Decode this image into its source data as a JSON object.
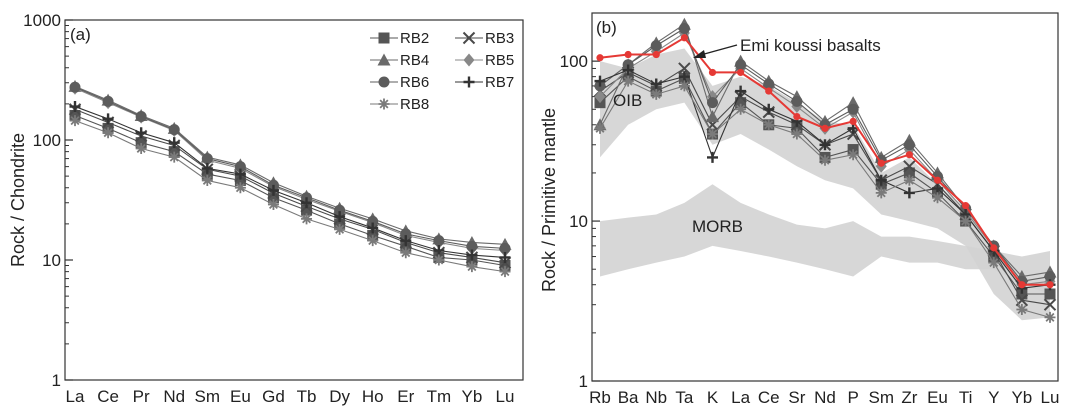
{
  "chart_data": [
    {
      "type": "line",
      "panel_label": "(a)",
      "ylabel": "Rock / Chondrite",
      "yscale": "log",
      "ylim": [
        1,
        1000
      ],
      "yticks": [
        "1",
        "10",
        "100",
        "1000"
      ],
      "categories": [
        "La",
        "Ce",
        "Pr",
        "Nd",
        "Sm",
        "Eu",
        "Gd",
        "Tb",
        "Dy",
        "Ho",
        "Er",
        "Tm",
        "Yb",
        "Lu"
      ],
      "legend_position": "top-right",
      "series": [
        {
          "name": "RB2",
          "marker": "square",
          "values": [
            160,
            125,
            95,
            80,
            52,
            46,
            33,
            26,
            20,
            16,
            13,
            10.5,
            10,
            9
          ]
        },
        {
          "name": "RB3",
          "marker": "x",
          "values": [
            180,
            140,
            108,
            90,
            57,
            50,
            36,
            28,
            22,
            18,
            14,
            11.5,
            10.5,
            9.5
          ]
        },
        {
          "name": "RB4",
          "marker": "triangle",
          "values": [
            280,
            215,
            160,
            125,
            72,
            62,
            44,
            34,
            27,
            22,
            17.5,
            15,
            14,
            13.5
          ]
        },
        {
          "name": "RB5",
          "marker": "diamond",
          "values": [
            270,
            205,
            155,
            120,
            68,
            58,
            41,
            32,
            25.5,
            20.5,
            16,
            14,
            12.5,
            12
          ]
        },
        {
          "name": "RB6",
          "marker": "circle",
          "values": [
            275,
            210,
            157,
            122,
            70,
            60,
            42,
            33,
            26,
            21,
            16.5,
            14.5,
            13,
            12.5
          ]
        },
        {
          "name": "RB7",
          "marker": "plus",
          "values": [
            190,
            150,
            115,
            95,
            58,
            52,
            38,
            30,
            23,
            18.5,
            14.5,
            12,
            11,
            10.5
          ]
        },
        {
          "name": "RB8",
          "marker": "asterisk",
          "values": [
            145,
            115,
            85,
            72,
            46,
            40,
            29,
            22,
            18,
            14.5,
            11.5,
            10,
            8.8,
            8
          ]
        }
      ]
    },
    {
      "type": "line",
      "panel_label": "(b)",
      "ylabel": "Rock / Primitive mantle",
      "yscale": "log",
      "ylim": [
        1,
        200
      ],
      "yticks": [
        "1",
        "10",
        "100"
      ],
      "categories": [
        "Rb",
        "Ba",
        "Nb",
        "Ta",
        "K",
        "La",
        "Ce",
        "Sr",
        "Nd",
        "P",
        "Sm",
        "Zr",
        "Eu",
        "Ti",
        "Y",
        "Yb",
        "Lu"
      ],
      "fields": [
        {
          "name": "OIB",
          "upper": [
            100,
            90,
            110,
            120,
            70,
            80,
            70,
            55,
            42,
            40,
            20,
            25,
            17,
            12,
            7,
            4,
            4
          ],
          "lower": [
            25,
            40,
            50,
            55,
            30,
            35,
            28,
            22,
            18,
            16,
            11,
            10,
            9,
            7,
            3.5,
            2.4,
            2.5
          ]
        },
        {
          "name": "MORB",
          "upper": [
            10,
            10.5,
            11,
            13,
            17,
            13,
            11,
            9.5,
            9,
            10,
            8,
            8,
            7.5,
            7,
            6.5,
            6,
            6.5
          ],
          "lower": [
            4.5,
            5,
            5.5,
            6,
            7,
            6.5,
            6,
            5.5,
            5,
            4.5,
            6,
            5.5,
            5.5,
            5,
            5,
            4,
            3.5
          ]
        }
      ],
      "series": [
        {
          "name": "RB2",
          "marker": "square",
          "values": [
            55,
            80,
            65,
            78,
            35,
            55,
            40,
            38,
            25,
            28,
            17,
            20,
            15,
            10,
            6,
            3.5,
            3.5
          ]
        },
        {
          "name": "RB3",
          "marker": "x",
          "values": [
            65,
            85,
            70,
            90,
            40,
            60,
            48,
            40,
            30,
            35,
            18,
            22,
            17,
            11,
            6.5,
            3.2,
            3
          ]
        },
        {
          "name": "RB4",
          "marker": "triangle",
          "values": [
            40,
            95,
            130,
            170,
            45,
            100,
            75,
            60,
            42,
            55,
            25,
            32,
            20,
            12,
            7,
            4.5,
            4.8
          ]
        },
        {
          "name": "RB5",
          "marker": "diamond",
          "values": [
            60,
            90,
            115,
            150,
            60,
            90,
            68,
            52,
            38,
            48,
            22,
            28,
            18,
            11.5,
            6.8,
            4,
            4.2
          ]
        },
        {
          "name": "RB6",
          "marker": "circle",
          "values": [
            70,
            95,
            125,
            160,
            55,
            95,
            72,
            56,
            40,
            50,
            24,
            30,
            19,
            12,
            7,
            4.2,
            4.5
          ]
        },
        {
          "name": "RB7",
          "marker": "plus",
          "values": [
            75,
            88,
            72,
            80,
            25,
            65,
            50,
            42,
            30,
            38,
            18,
            15,
            16,
            11,
            6.5,
            3.8,
            4
          ]
        },
        {
          "name": "RB8",
          "marker": "asterisk",
          "values": [
            38,
            75,
            62,
            70,
            35,
            50,
            40,
            35,
            24,
            26,
            15,
            18,
            14,
            10,
            5.5,
            2.8,
            2.5
          ]
        }
      ],
      "highlight": {
        "name": "Emi koussi basalts",
        "color": "#e53935",
        "values": [
          105,
          110,
          110,
          140,
          85,
          85,
          65,
          45,
          38,
          42,
          23,
          26,
          18,
          12.5,
          6.8,
          4.0,
          4.0
        ]
      },
      "annotations": [
        "Emi koussi basalts",
        "OIB",
        "MORB"
      ]
    }
  ]
}
